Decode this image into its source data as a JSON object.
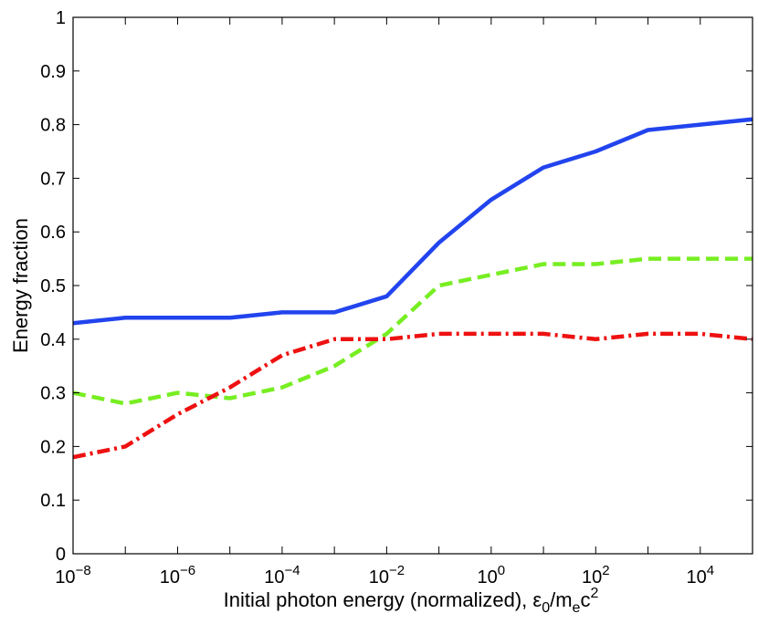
{
  "chart_data": {
    "type": "line",
    "title": "",
    "xlabel": "Initial photon energy (normalized), ",
    "xlabel_math": {
      "eps": "ε",
      "sub0": "0",
      "slash": "/m",
      "sube": "e",
      "c": "c",
      "sup2": "2"
    },
    "ylabel": "Energy fraction",
    "xscale": "log",
    "xlim_log10": [
      -8,
      5
    ],
    "ylim": [
      0,
      1
    ],
    "x_ticks": [
      {
        "exp": -8,
        "base": "10",
        "sup": "−8"
      },
      {
        "exp": -6,
        "base": "10",
        "sup": "−6"
      },
      {
        "exp": -4,
        "base": "10",
        "sup": "−4"
      },
      {
        "exp": -2,
        "base": "10",
        "sup": "−2"
      },
      {
        "exp": 0,
        "base": "10",
        "sup": "0"
      },
      {
        "exp": 2,
        "base": "10",
        "sup": "2"
      },
      {
        "exp": 4,
        "base": "10",
        "sup": "4"
      }
    ],
    "y_ticks": [
      {
        "value": 0,
        "label": "0"
      },
      {
        "value": 0.1,
        "label": "0.1"
      },
      {
        "value": 0.2,
        "label": "0.2"
      },
      {
        "value": 0.3,
        "label": "0.3"
      },
      {
        "value": 0.4,
        "label": "0.4"
      },
      {
        "value": 0.5,
        "label": "0.5"
      },
      {
        "value": 0.6,
        "label": "0.6"
      },
      {
        "value": 0.7,
        "label": "0.7"
      },
      {
        "value": 0.8,
        "label": "0.8"
      },
      {
        "value": 0.9,
        "label": "0.9"
      },
      {
        "value": 1,
        "label": "1"
      }
    ],
    "grid": false,
    "x_log10": [
      -8,
      -7,
      -6,
      -5,
      -4,
      -3,
      -2,
      -1,
      0,
      1,
      2,
      3,
      4,
      5
    ],
    "series": [
      {
        "name": "blue-solid",
        "color": "#2244ee",
        "style": "solid",
        "values": [
          0.43,
          0.44,
          0.44,
          0.44,
          0.45,
          0.45,
          0.48,
          0.58,
          0.66,
          0.72,
          0.75,
          0.79,
          0.8,
          0.81
        ]
      },
      {
        "name": "green-dashed",
        "color": "#77ee22",
        "style": "dashed",
        "values": [
          0.3,
          0.28,
          0.3,
          0.29,
          0.31,
          0.35,
          0.41,
          0.5,
          0.52,
          0.54,
          0.54,
          0.55,
          0.55,
          0.55
        ]
      },
      {
        "name": "red-dashdot",
        "color": "#ee1111",
        "style": "dashdot",
        "values": [
          0.18,
          0.2,
          0.26,
          0.31,
          0.37,
          0.4,
          0.4,
          0.41,
          0.41,
          0.41,
          0.4,
          0.41,
          0.41,
          0.4
        ]
      }
    ]
  }
}
